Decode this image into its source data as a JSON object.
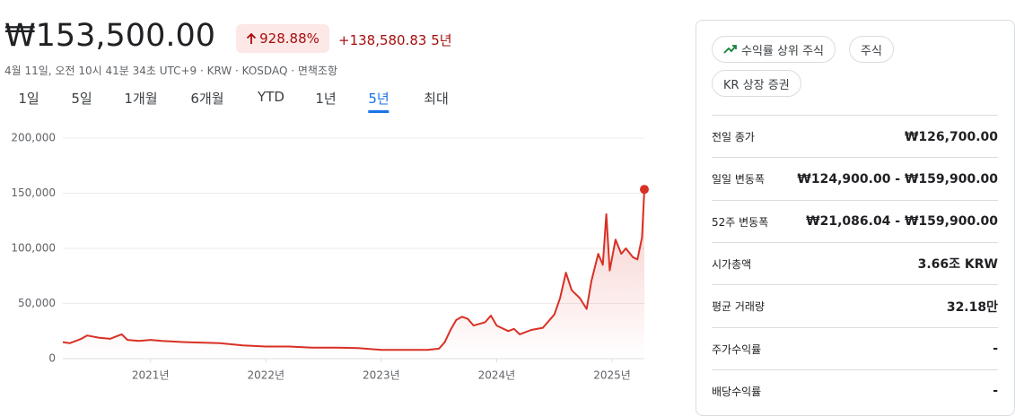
{
  "header": {
    "price": "₩153,500.00",
    "change_pct": "928.88%",
    "change_abs": "+138,580.83",
    "period": "5년",
    "meta": "4월 11일, 오전 10시 41분 34초 UTC+9 · KRW · KOSDAQ · 면책조항"
  },
  "tabs": {
    "items": [
      "1일",
      "5일",
      "1개월",
      "6개월",
      "YTD",
      "1년",
      "5년",
      "최대"
    ],
    "active": 6
  },
  "chart_data": {
    "type": "line",
    "x": [
      2020.24,
      2020.3,
      2020.4,
      2020.45,
      2020.55,
      2020.65,
      2020.75,
      2020.8,
      2020.9,
      2021.0,
      2021.1,
      2021.3,
      2021.6,
      2021.8,
      2022.0,
      2022.2,
      2022.4,
      2022.6,
      2022.8,
      2023.0,
      2023.2,
      2023.4,
      2023.5,
      2023.55,
      2023.6,
      2023.65,
      2023.7,
      2023.75,
      2023.8,
      2023.9,
      2023.95,
      2024.0,
      2024.1,
      2024.15,
      2024.2,
      2024.3,
      2024.4,
      2024.5,
      2024.55,
      2024.6,
      2024.65,
      2024.72,
      2024.78,
      2024.82,
      2024.88,
      2024.92,
      2024.95,
      2024.98,
      2025.03,
      2025.08,
      2025.12,
      2025.18,
      2025.22,
      2025.26,
      2025.28
    ],
    "series": [
      {
        "color": "#d93025",
        "values": [
          15000,
          14000,
          18000,
          21000,
          19000,
          18000,
          22000,
          17000,
          16000,
          17000,
          16000,
          15000,
          14000,
          12000,
          11000,
          11000,
          10000,
          10000,
          9500,
          8000,
          8000,
          8000,
          9000,
          15000,
          26000,
          35000,
          38000,
          36000,
          30000,
          33000,
          39000,
          30000,
          25000,
          27000,
          22000,
          26000,
          28000,
          40000,
          55000,
          78000,
          62000,
          55000,
          45000,
          70000,
          95000,
          85000,
          131000,
          80000,
          108000,
          95000,
          100000,
          92000,
          90000,
          110000,
          153500
        ]
      }
    ],
    "xlim": [
      2020.24,
      2025.28
    ],
    "xticks": [
      {
        "value": 2021,
        "label": "2021년"
      },
      {
        "value": 2022,
        "label": "2022년"
      },
      {
        "value": 2023,
        "label": "2023년"
      },
      {
        "value": 2024,
        "label": "2024년"
      },
      {
        "value": 2025,
        "label": "2025년"
      }
    ],
    "ylim": [
      0,
      200000
    ],
    "yticks": [
      0,
      {
        "value": 50000,
        "label": "50,000"
      },
      {
        "value": 100000,
        "label": "100,000"
      },
      {
        "value": 150000,
        "label": "150,000"
      },
      {
        "value": 200000,
        "label": "200,000"
      }
    ],
    "grid": true
  },
  "chips": [
    "수익률 상위 주식",
    "주식",
    "KR 상장 증권"
  ],
  "stats": {
    "rows": [
      [
        "전일 종가",
        "₩126,700.00"
      ],
      [
        "일일 변동폭",
        "₩124,900.00 - ₩159,900.00"
      ],
      [
        "52주 변동폭",
        "₩21,086.04 - ₩159,900.00"
      ],
      [
        "시가총액",
        "3.66조 KRW"
      ],
      [
        "평균 거래량",
        "32.18만"
      ],
      [
        "주가수익률",
        "-"
      ],
      [
        "배당수익률",
        "-"
      ]
    ]
  }
}
